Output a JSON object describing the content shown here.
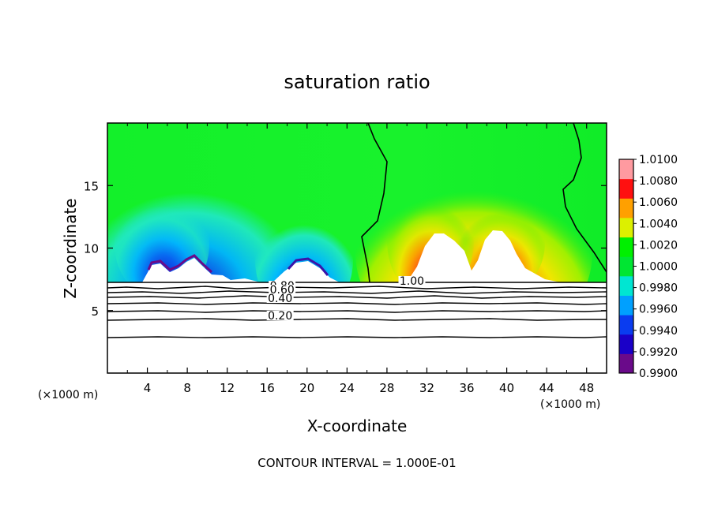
{
  "chart_data": {
    "type": "heatmap",
    "title": "saturation ratio",
    "xlabel": "X-coordinate",
    "ylabel": "Z-coordinate",
    "x_unit": "(×1000 m)",
    "y_unit": "(×1000 m)",
    "xlim": [
      0,
      50
    ],
    "ylim": [
      0,
      20
    ],
    "x_ticks": [
      4,
      8,
      12,
      16,
      20,
      24,
      28,
      32,
      36,
      40,
      44,
      48
    ],
    "y_ticks": [
      5,
      10,
      15
    ],
    "colorbar": {
      "min": 0.99,
      "max": 1.01,
      "ticks": [
        "1.0100",
        "1.0080",
        "1.0060",
        "1.0040",
        "1.0020",
        "1.0000",
        "0.9980",
        "0.9960",
        "0.9940",
        "0.9920",
        "0.9900"
      ],
      "tick_values": [
        1.01,
        1.008,
        1.006,
        1.004,
        1.002,
        1.0,
        0.998,
        0.996,
        0.994,
        0.992,
        0.99
      ],
      "colors": [
        "#6a0a8a",
        "#1a00c8",
        "#0a3cf0",
        "#00a0ff",
        "#00e6d2",
        "#00e632",
        "#00f000",
        "#dcf000",
        "#ffa000",
        "#ff1010",
        "#ff9aa0"
      ]
    },
    "lower_region_top_z": 7.3,
    "contour_lines": [
      {
        "label": "1.00",
        "label_x": 30.5
      },
      {
        "label": "0.80",
        "label_x": 17.5
      },
      {
        "label": "0.60",
        "label_x": 17.5
      },
      {
        "label": "0.40",
        "label_x": 17.3
      },
      {
        "label": "0.20",
        "label_x": 17.3
      }
    ],
    "contour_interval_text": "CONTOUR INTERVAL = 1.000E-01"
  }
}
